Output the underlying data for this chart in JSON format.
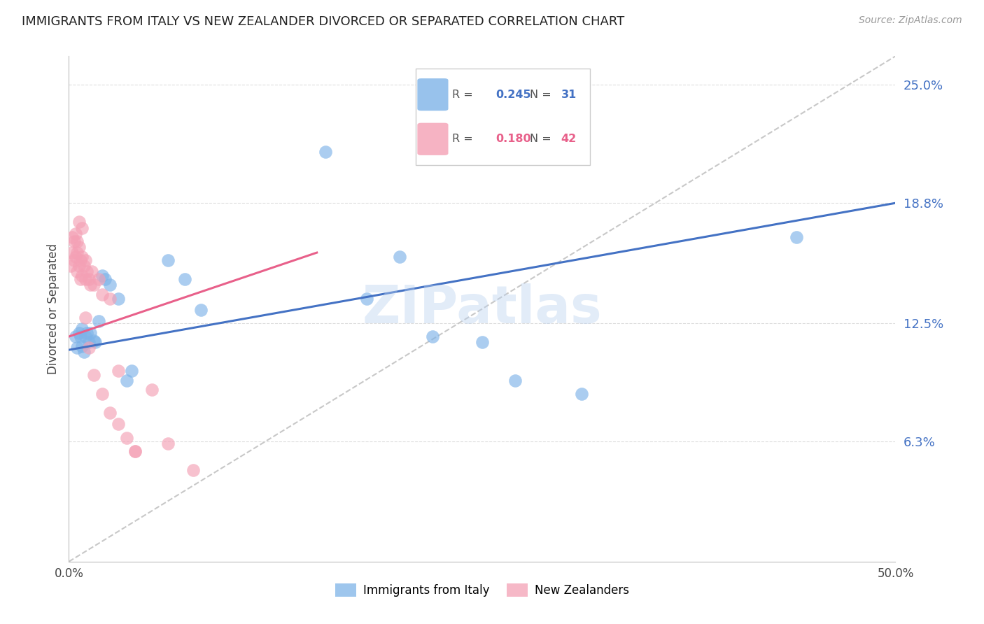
{
  "title": "IMMIGRANTS FROM ITALY VS NEW ZEALANDER DIVORCED OR SEPARATED CORRELATION CHART",
  "source": "Source: ZipAtlas.com",
  "ylabel": "Divorced or Separated",
  "right_yticks": [
    "25.0%",
    "18.8%",
    "12.5%",
    "6.3%"
  ],
  "right_ytick_vals": [
    0.25,
    0.188,
    0.125,
    0.063
  ],
  "legend_italy_r": "0.245",
  "legend_italy_n": "31",
  "legend_nz_r": "0.180",
  "legend_nz_n": "42",
  "italy_color": "#7eb3e8",
  "nz_color": "#f4a0b5",
  "italy_line_color": "#4472c4",
  "nz_line_color": "#e8608a",
  "dashed_line_color": "#c8c8c8",
  "watermark": "ZIPatlas",
  "xlim": [
    0,
    0.5
  ],
  "ylim": [
    0,
    0.265
  ],
  "italy_x": [
    0.004,
    0.005,
    0.006,
    0.007,
    0.008,
    0.008,
    0.009,
    0.01,
    0.011,
    0.012,
    0.013,
    0.015,
    0.016,
    0.018,
    0.02,
    0.022,
    0.025,
    0.03,
    0.035,
    0.038,
    0.06,
    0.07,
    0.08,
    0.18,
    0.2,
    0.22,
    0.25,
    0.27,
    0.31,
    0.44,
    0.155
  ],
  "italy_y": [
    0.118,
    0.112,
    0.12,
    0.118,
    0.113,
    0.122,
    0.11,
    0.118,
    0.12,
    0.115,
    0.12,
    0.116,
    0.115,
    0.126,
    0.15,
    0.148,
    0.145,
    0.138,
    0.095,
    0.1,
    0.158,
    0.148,
    0.132,
    0.138,
    0.16,
    0.118,
    0.115,
    0.095,
    0.088,
    0.17,
    0.215
  ],
  "nz_x": [
    0.001,
    0.002,
    0.002,
    0.003,
    0.003,
    0.004,
    0.004,
    0.005,
    0.005,
    0.005,
    0.006,
    0.006,
    0.007,
    0.007,
    0.008,
    0.008,
    0.009,
    0.01,
    0.01,
    0.011,
    0.012,
    0.013,
    0.014,
    0.015,
    0.018,
    0.02,
    0.025,
    0.03,
    0.035,
    0.04,
    0.05,
    0.06,
    0.075,
    0.01,
    0.012,
    0.015,
    0.02,
    0.025,
    0.03,
    0.04,
    0.006,
    0.008
  ],
  "nz_y": [
    0.155,
    0.162,
    0.17,
    0.158,
    0.168,
    0.16,
    0.172,
    0.152,
    0.162,
    0.168,
    0.155,
    0.165,
    0.148,
    0.158,
    0.15,
    0.16,
    0.155,
    0.148,
    0.158,
    0.152,
    0.148,
    0.145,
    0.152,
    0.145,
    0.148,
    0.14,
    0.138,
    0.1,
    0.065,
    0.058,
    0.09,
    0.062,
    0.048,
    0.128,
    0.112,
    0.098,
    0.088,
    0.078,
    0.072,
    0.058,
    0.178,
    0.175
  ]
}
